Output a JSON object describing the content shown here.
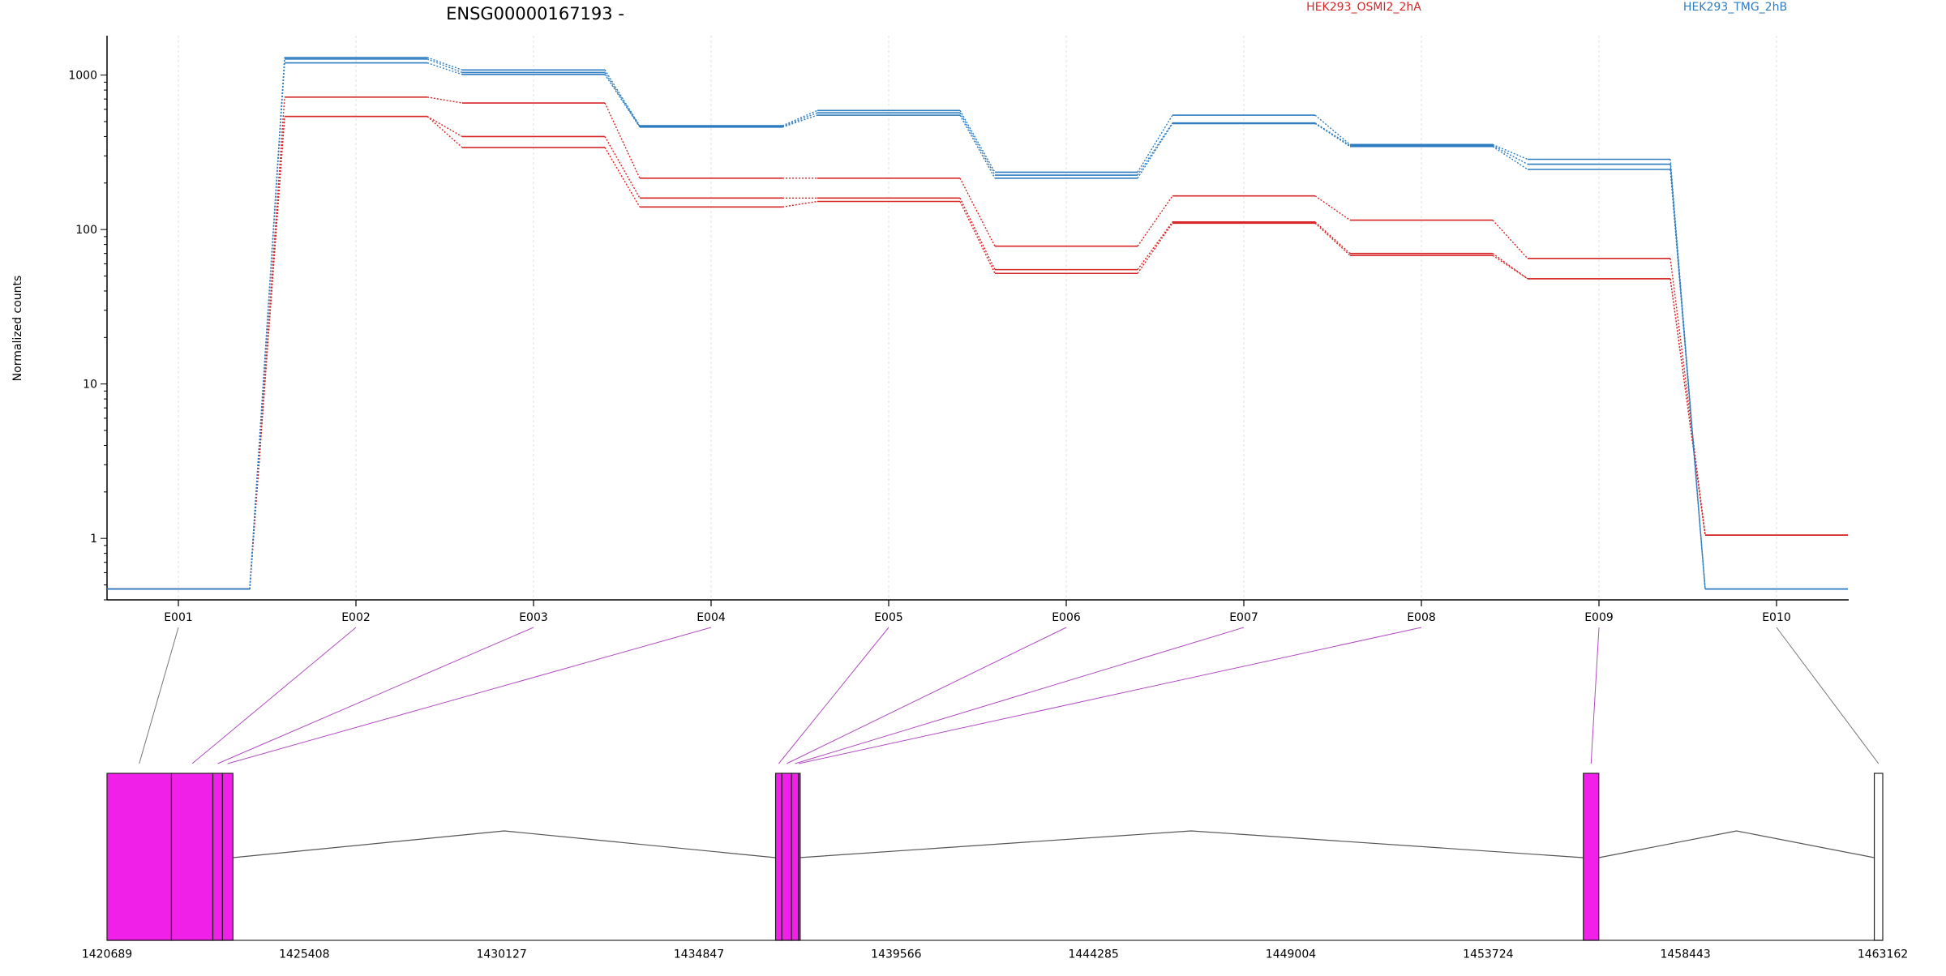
{
  "chart_data": {
    "type": "line",
    "title": "ENSG00000167193 -",
    "ylabel": "Normalized counts",
    "yscale": "log",
    "ylim": [
      0.4,
      1800
    ],
    "yticks": [
      {
        "value": 1000,
        "label": "1000"
      },
      {
        "value": 100,
        "label": "100"
      },
      {
        "value": 10,
        "label": "10"
      },
      {
        "value": 1,
        "label": "1"
      }
    ],
    "grid": "vertical",
    "legend_position": "top",
    "exons": [
      "E001",
      "E002",
      "E003",
      "E004",
      "E005",
      "E006",
      "E007",
      "E008",
      "E009",
      "E010"
    ],
    "colors": {
      "HEK293_OSMI2_2hA": "#d62728",
      "HEK293_TMG_2hB": "#2f7dc0"
    },
    "groups": [
      {
        "name": "HEK293_OSMI2_2hA",
        "color": "#d62728",
        "lines": [
          [
            0.47,
            720,
            660,
            215,
            215,
            78,
            165,
            115,
            65,
            1.05
          ],
          [
            0.47,
            540,
            400,
            160,
            160,
            55,
            112,
            70,
            48,
            1.05
          ],
          [
            0.47,
            540,
            340,
            140,
            152,
            52,
            110,
            68,
            48,
            1.05
          ]
        ]
      },
      {
        "name": "HEK293_TMG_2hB",
        "color": "#2f7dc0",
        "lines": [
          [
            0.47,
            1300,
            1080,
            470,
            590,
            235,
            550,
            355,
            285,
            0.47
          ],
          [
            0.47,
            1270,
            1040,
            465,
            570,
            225,
            490,
            350,
            265,
            0.47
          ],
          [
            0.47,
            1200,
            1010,
            460,
            550,
            215,
            485,
            345,
            245,
            0.47
          ]
        ]
      }
    ],
    "gene_model": {
      "xlim": [
        1420689,
        1463162
      ],
      "ticks": [
        1420689,
        1425408,
        1430127,
        1434847,
        1439566,
        1444285,
        1449004,
        1453724,
        1458443,
        1463162
      ],
      "tick_labels": [
        "1420689",
        "1425408",
        "1430127",
        "1434847",
        "1439566",
        "1444285",
        "1449004",
        "1453724",
        "1458443",
        "1463162"
      ],
      "exon_fill": "#f020e8",
      "exon_blocks": [
        {
          "exon": "E001",
          "start": 1420689,
          "end": 1422230,
          "tested": true
        },
        {
          "exon": "E002",
          "start": 1422230,
          "end": 1423220,
          "tested": true
        },
        {
          "exon": "E003",
          "start": 1423220,
          "end": 1423450,
          "tested": true
        },
        {
          "exon": "E004",
          "start": 1423450,
          "end": 1423700,
          "tested": true
        },
        {
          "exon": "E005",
          "start": 1436680,
          "end": 1436830,
          "tested": true
        },
        {
          "exon": "E006",
          "start": 1436830,
          "end": 1437060,
          "tested": true
        },
        {
          "exon": "E007",
          "start": 1437060,
          "end": 1437230,
          "tested": true
        },
        {
          "exon": "E008",
          "start": 1437230,
          "end": 1437240,
          "tested": true
        },
        {
          "exon": "E009",
          "start": 1456000,
          "end": 1456370,
          "tested": true
        },
        {
          "exon": "E010",
          "start": 1462960,
          "end": 1463162,
          "tested": false
        }
      ],
      "introns": [
        {
          "start": 1423700,
          "end": 1436680
        },
        {
          "start": 1437240,
          "end": 1456000
        },
        {
          "start": 1456370,
          "end": 1462960
        }
      ]
    }
  }
}
